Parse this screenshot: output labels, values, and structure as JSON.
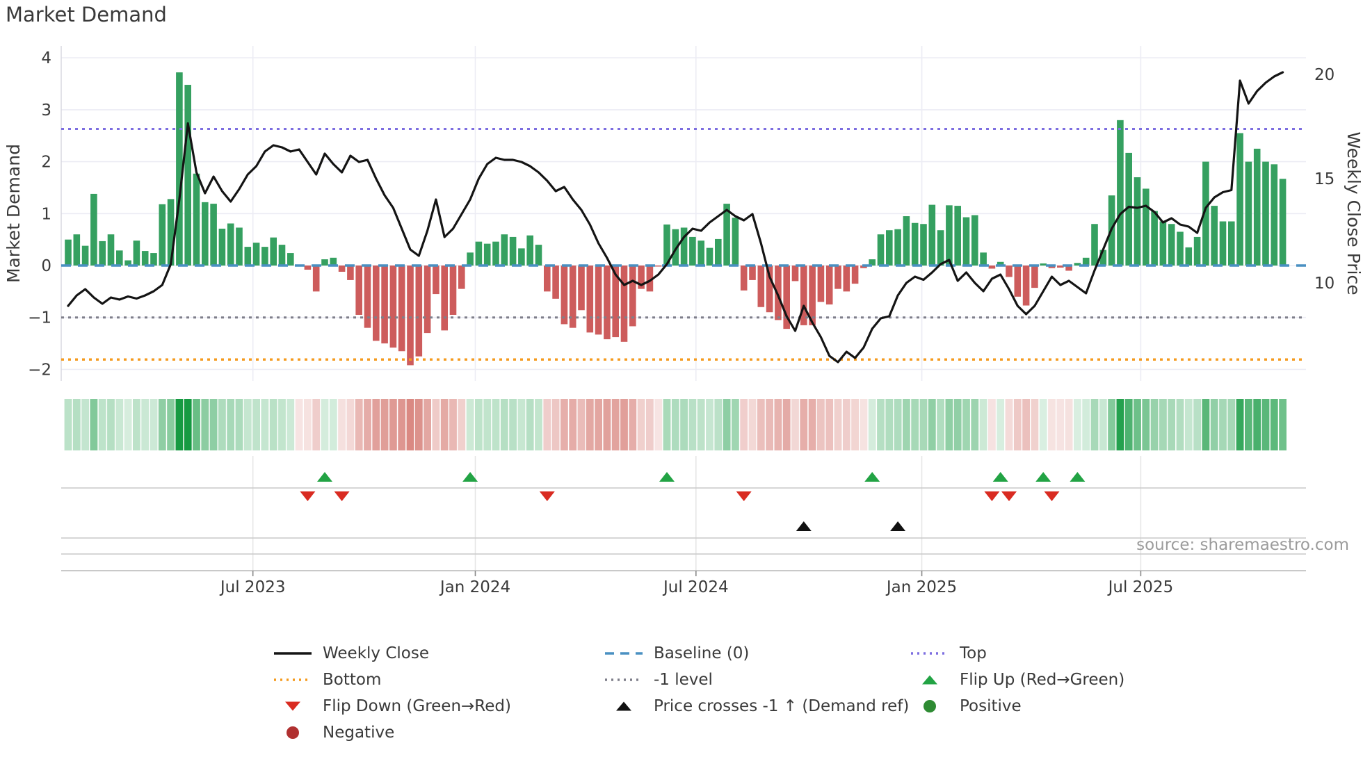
{
  "title": "Market Demand",
  "source_text": "source: sharemaestro.com",
  "axes": {
    "y_left_label": "Market Demand",
    "y_right_label": "Weekly Close Price",
    "y_left_ticks": [
      "4",
      "3",
      "2",
      "1",
      "0",
      "−1",
      "−2"
    ],
    "y_left_tick_values": [
      4,
      3,
      2,
      1,
      0,
      -1,
      -2
    ],
    "y_right_ticks": [
      "20",
      "15",
      "10"
    ],
    "y_right_tick_values": [
      20,
      15,
      10
    ],
    "x_ticks": [
      {
        "label": "Jul 2023",
        "week": 21.6
      },
      {
        "label": "Jan 2024",
        "week": 47.6
      },
      {
        "label": "Jul 2024",
        "week": 73.4
      },
      {
        "label": "Jan 2025",
        "week": 99.8
      },
      {
        "label": "Jul 2025",
        "week": 125.4
      }
    ]
  },
  "colors": {
    "bar_green": "#35a060",
    "bar_red": "#cd5c5c",
    "line_black": "#141414",
    "baseline_blue": "#4a90c2",
    "top_purple": "#7d6ee0",
    "minus1_gray": "#7f7f8a",
    "bottom_orange": "#f59b1e",
    "heat_green": "#169a42",
    "heat_red": "#c9544b",
    "flipup_green": "#22a344",
    "flipdown_red": "#d92b21",
    "cross_black": "#111111",
    "positive_green": "#2e8b33",
    "negative_red": "#b03030",
    "grid": "#ececf4",
    "axis_text": "#3a3a3a",
    "source_gray": "#9c9c9c",
    "panel_line": "#c9c9c9",
    "panel_grid": "#e5e5e5",
    "spine": "#d8d8e0"
  },
  "chart_data": {
    "type": [
      "bar",
      "line",
      "heatmap"
    ],
    "title": "Market Demand",
    "x_unit": "week",
    "ylabel_left": "Market Demand",
    "ylabel_right": "Weekly Close Price",
    "ylim_left": [
      -2.3,
      4.25
    ],
    "grid": true,
    "legend_position": "bottom",
    "reference_levels": {
      "baseline": 0,
      "top": 2.63,
      "minus_one": -1,
      "bottom": -1.81
    },
    "series": [
      {
        "name": "Market Demand",
        "type": "bar",
        "axis": "left",
        "values": [
          0.5,
          0.6,
          0.38,
          1.38,
          0.47,
          0.6,
          0.29,
          0.1,
          0.48,
          0.28,
          0.24,
          1.18,
          1.28,
          3.72,
          3.48,
          1.77,
          1.22,
          1.19,
          0.71,
          0.81,
          0.73,
          0.36,
          0.44,
          0.36,
          0.54,
          0.4,
          0.24,
          -0.02,
          -0.08,
          -0.5,
          0.12,
          0.15,
          -0.12,
          -0.28,
          -0.95,
          -1.2,
          -1.45,
          -1.5,
          -1.58,
          -1.65,
          -1.92,
          -1.75,
          -1.3,
          -0.55,
          -1.25,
          -0.95,
          -0.45,
          0.25,
          0.46,
          0.42,
          0.46,
          0.6,
          0.55,
          0.33,
          0.58,
          0.4,
          -0.5,
          -0.64,
          -1.13,
          -1.2,
          -0.86,
          -1.29,
          -1.33,
          -1.42,
          -1.38,
          -1.47,
          -1.17,
          -0.45,
          -0.5,
          -0.02,
          0.79,
          0.7,
          0.73,
          0.55,
          0.48,
          0.34,
          0.51,
          1.19,
          0.92,
          -0.48,
          -0.28,
          -0.8,
          -0.9,
          -1.05,
          -1.22,
          -0.3,
          -1.15,
          -1.15,
          -0.7,
          -0.75,
          -0.45,
          -0.5,
          -0.35,
          -0.05,
          0.12,
          0.6,
          0.68,
          0.7,
          0.95,
          0.82,
          0.8,
          1.17,
          0.68,
          1.16,
          1.15,
          0.93,
          0.97,
          0.25,
          -0.06,
          0.07,
          -0.22,
          -0.6,
          -0.77,
          -0.43,
          0.04,
          -0.05,
          -0.04,
          -0.1,
          0.05,
          0.15,
          0.8,
          0.3,
          1.35,
          2.8,
          2.17,
          1.7,
          1.48,
          1.05,
          0.85,
          0.8,
          0.65,
          0.35,
          0.55,
          2.0,
          1.15,
          0.85,
          0.85,
          2.55,
          2.0,
          2.25,
          2.0,
          1.95,
          1.67
        ]
      },
      {
        "name": "Weekly Close",
        "type": "line",
        "axis": "right",
        "values": [
          8.9,
          9.4,
          9.7,
          9.3,
          9.0,
          9.3,
          9.2,
          9.35,
          9.25,
          9.4,
          9.6,
          9.9,
          10.9,
          14.0,
          17.65,
          15.3,
          14.3,
          15.1,
          14.4,
          13.9,
          14.5,
          15.2,
          15.6,
          16.3,
          16.6,
          16.5,
          16.3,
          16.4,
          15.8,
          15.2,
          16.2,
          15.7,
          15.3,
          16.1,
          15.8,
          15.9,
          15.0,
          14.2,
          13.6,
          12.6,
          11.6,
          11.3,
          12.5,
          14.0,
          12.2,
          12.6,
          13.3,
          14.0,
          15.0,
          15.7,
          16.0,
          15.9,
          15.9,
          15.8,
          15.6,
          15.3,
          14.9,
          14.4,
          14.6,
          14.0,
          13.5,
          12.8,
          11.9,
          11.2,
          10.4,
          9.9,
          10.1,
          9.9,
          10.1,
          10.4,
          10.9,
          11.6,
          12.2,
          12.6,
          12.5,
          12.9,
          13.2,
          13.5,
          13.2,
          13.0,
          13.3,
          11.9,
          10.3,
          9.4,
          8.4,
          7.7,
          8.9,
          8.1,
          7.4,
          6.5,
          6.2,
          6.7,
          6.4,
          6.9,
          7.8,
          8.3,
          8.4,
          9.4,
          10.0,
          10.3,
          10.15,
          10.5,
          10.9,
          11.1,
          10.1,
          10.5,
          10.0,
          9.6,
          10.2,
          10.4,
          9.7,
          8.9,
          8.5,
          8.9,
          9.6,
          10.3,
          9.9,
          10.1,
          9.8,
          9.5,
          10.6,
          11.6,
          12.6,
          13.3,
          13.65,
          13.6,
          13.7,
          13.4,
          12.9,
          13.1,
          12.8,
          12.7,
          12.4,
          13.6,
          14.1,
          14.35,
          14.45,
          19.7,
          18.6,
          19.2,
          19.6,
          19.9,
          20.1
        ]
      }
    ],
    "markers": {
      "flip_up_weeks": [
        30,
        47,
        70,
        94,
        109,
        114,
        118
      ],
      "flip_down_weeks": [
        28,
        32,
        56,
        79,
        108,
        110,
        115
      ],
      "price_cross_weeks": [
        86,
        97
      ]
    }
  },
  "legend": {
    "items": [
      {
        "label": "Weekly Close",
        "swatch": "line-solid",
        "color": "#141414",
        "col": 0,
        "row": 0
      },
      {
        "label": "Bottom",
        "swatch": "line-dotted",
        "color": "#f59b1e",
        "col": 0,
        "row": 1
      },
      {
        "label": "Flip Down (Green→Red)",
        "swatch": "triangle-down",
        "color": "#d92b21",
        "col": 0,
        "row": 2
      },
      {
        "label": "Negative",
        "swatch": "circle",
        "color": "#b03030",
        "col": 0,
        "row": 3
      },
      {
        "label": "Baseline (0)",
        "swatch": "line-dashed",
        "color": "#4a90c2",
        "col": 1,
        "row": 0
      },
      {
        "label": "-1 level",
        "swatch": "line-dotted",
        "color": "#7f7f8a",
        "col": 1,
        "row": 1
      },
      {
        "label": "Price crosses -1 ↑ (Demand ref)",
        "swatch": "triangle-up",
        "color": "#111111",
        "col": 1,
        "row": 2
      },
      {
        "label": "Top",
        "swatch": "line-dotted",
        "color": "#7d6ee0",
        "col": 2,
        "row": 0
      },
      {
        "label": "Flip Up (Red→Green)",
        "swatch": "triangle-up",
        "color": "#22a344",
        "col": 2,
        "row": 1
      },
      {
        "label": "Positive",
        "swatch": "circle",
        "color": "#2e8b33",
        "col": 2,
        "row": 2
      }
    ]
  }
}
